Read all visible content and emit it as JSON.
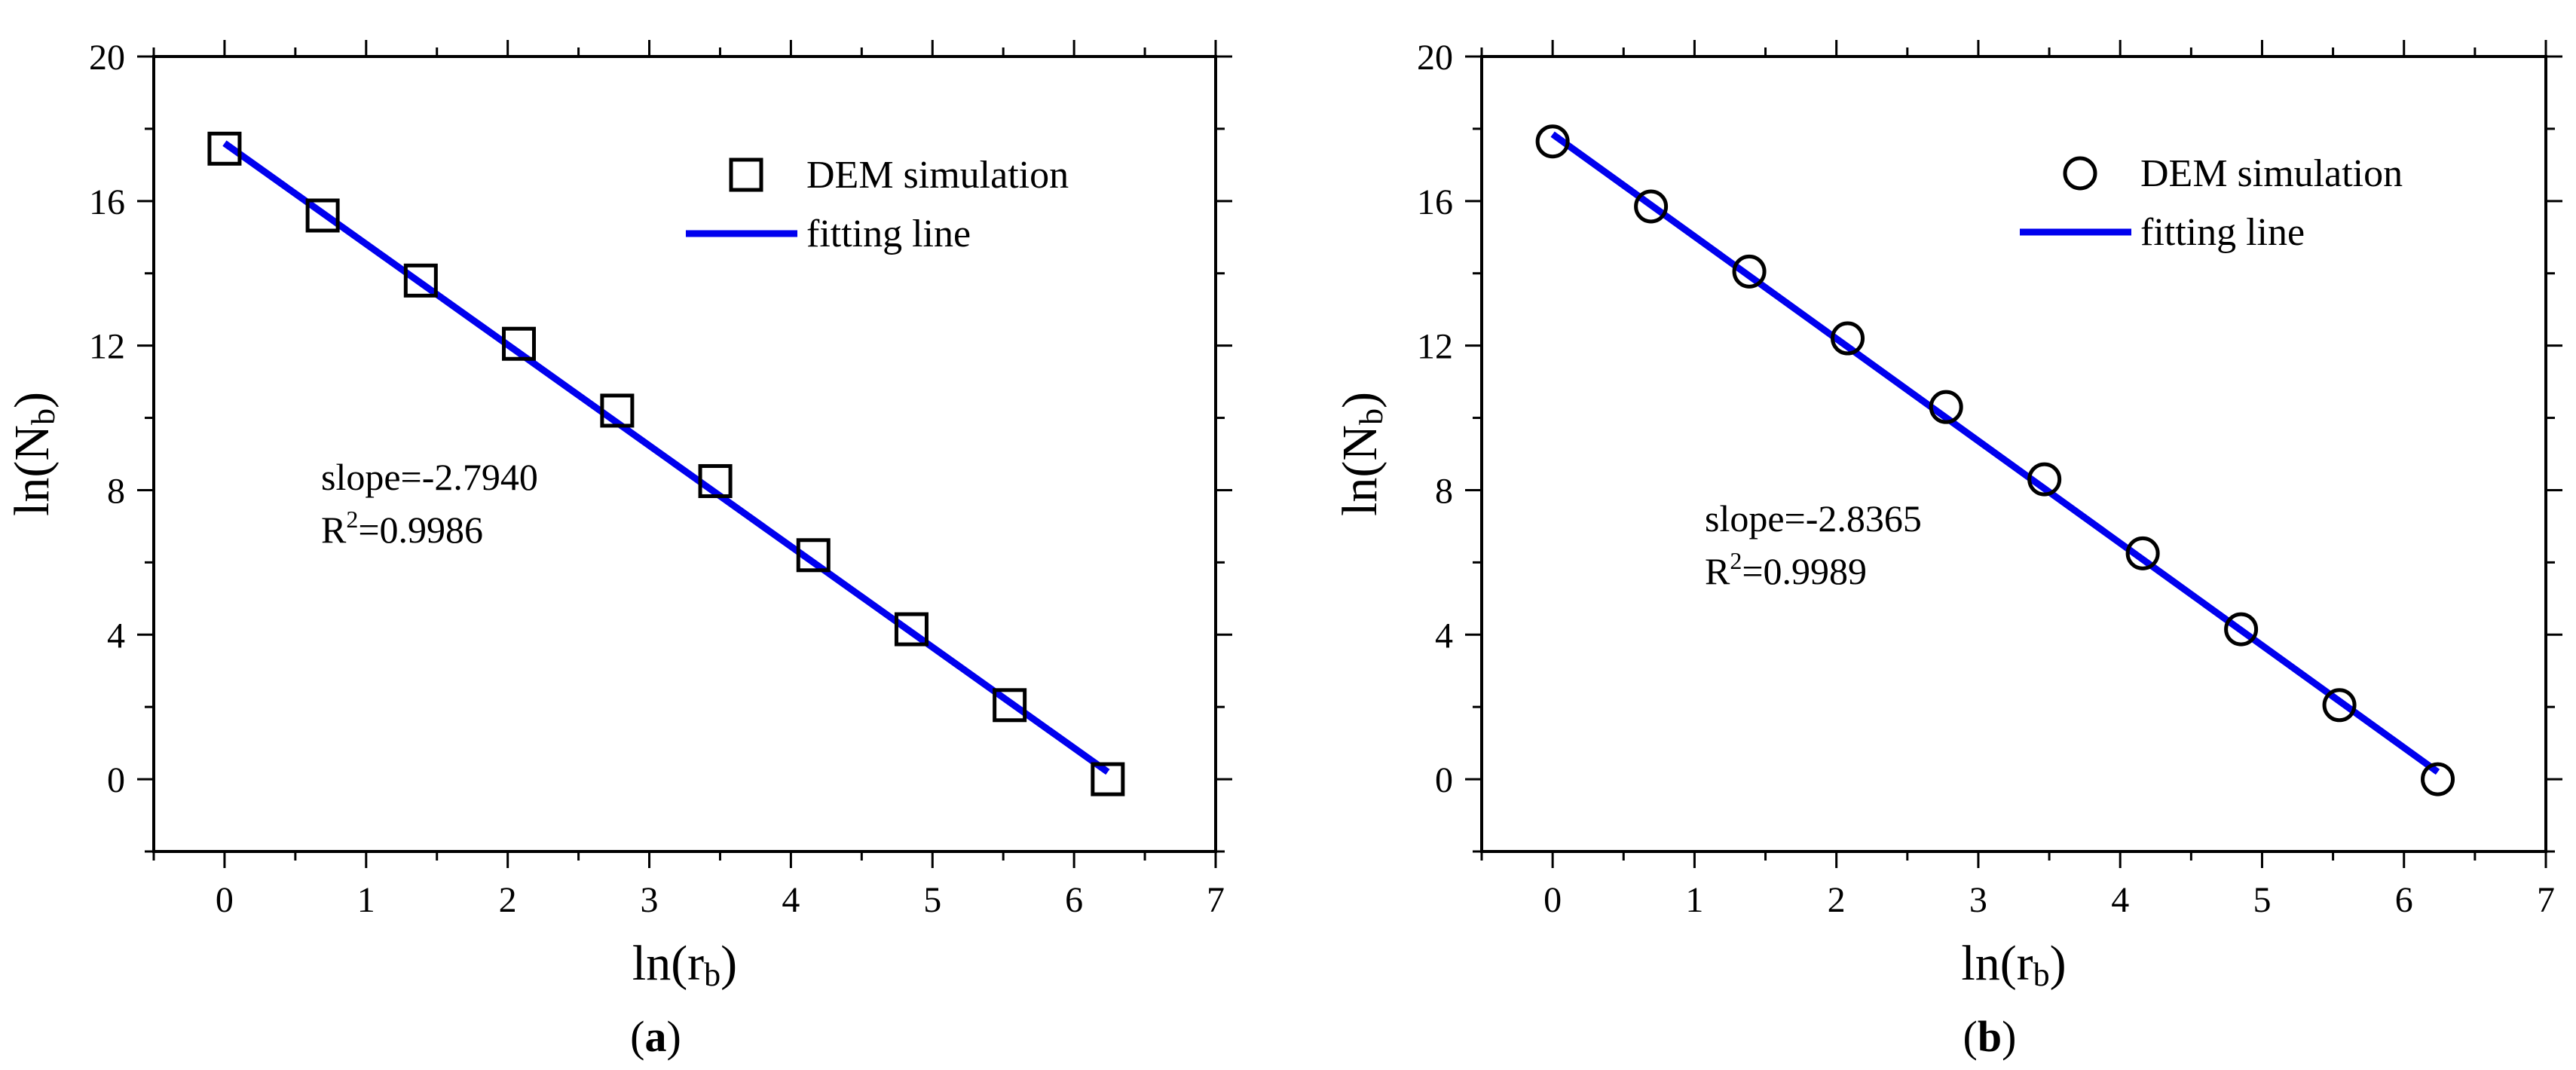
{
  "chart_data": [
    {
      "type": "scatter",
      "panel_label": "a",
      "marker": "square",
      "xlabel": "ln(r",
      "xlabel_sub": "b",
      "xlabel_close": ")",
      "ylabel": "ln(N",
      "ylabel_sub": "b",
      "ylabel_close": ")",
      "xlim": [
        -0.5,
        7
      ],
      "ylim": [
        -2,
        20
      ],
      "x_ticks": [
        0,
        1,
        2,
        3,
        4,
        5,
        6,
        7
      ],
      "y_ticks": [
        0,
        4,
        8,
        12,
        16,
        20
      ],
      "legend_position": "top-right",
      "series": [
        {
          "name": "DEM simulation",
          "kind": "markers",
          "color": "#000000",
          "x": [
            0,
            0.693,
            1.386,
            2.079,
            2.773,
            3.466,
            4.159,
            4.852,
            5.545,
            6.238
          ],
          "y": [
            17.45,
            15.6,
            13.8,
            12.05,
            10.2,
            8.25,
            6.2,
            4.15,
            2.05,
            0.0
          ]
        },
        {
          "name": "fitting line",
          "kind": "line",
          "color": "#0000ee",
          "x": [
            0,
            6.238
          ],
          "y": [
            17.6,
            0.2
          ]
        }
      ],
      "annotation": {
        "slope": "slope=-2.7940",
        "r2_prefix": "R",
        "r2_sup": "2",
        "r2_value": "=0.9986"
      }
    },
    {
      "type": "scatter",
      "panel_label": "b",
      "marker": "circle",
      "xlabel": "ln(r",
      "xlabel_sub": "b",
      "xlabel_close": ")",
      "ylabel": "ln(N",
      "ylabel_sub": "b",
      "ylabel_close": ")",
      "xlim": [
        -0.5,
        7
      ],
      "ylim": [
        -2,
        20
      ],
      "x_ticks": [
        0,
        1,
        2,
        3,
        4,
        5,
        6,
        7
      ],
      "y_ticks": [
        0,
        4,
        8,
        12,
        16,
        20
      ],
      "legend_position": "top-right",
      "series": [
        {
          "name": "DEM simulation",
          "kind": "markers",
          "color": "#000000",
          "x": [
            0,
            0.693,
            1.386,
            2.079,
            2.773,
            3.466,
            4.159,
            4.852,
            5.545,
            6.238
          ],
          "y": [
            17.65,
            15.85,
            14.05,
            12.2,
            10.3,
            8.3,
            6.25,
            4.15,
            2.05,
            0.0
          ]
        },
        {
          "name": "fitting line",
          "kind": "line",
          "color": "#0000ee",
          "x": [
            0,
            6.238
          ],
          "y": [
            17.85,
            0.2
          ]
        }
      ],
      "annotation": {
        "slope": "slope=-2.8365",
        "r2_prefix": "R",
        "r2_sup": "2",
        "r2_value": "=0.9989"
      }
    }
  ]
}
